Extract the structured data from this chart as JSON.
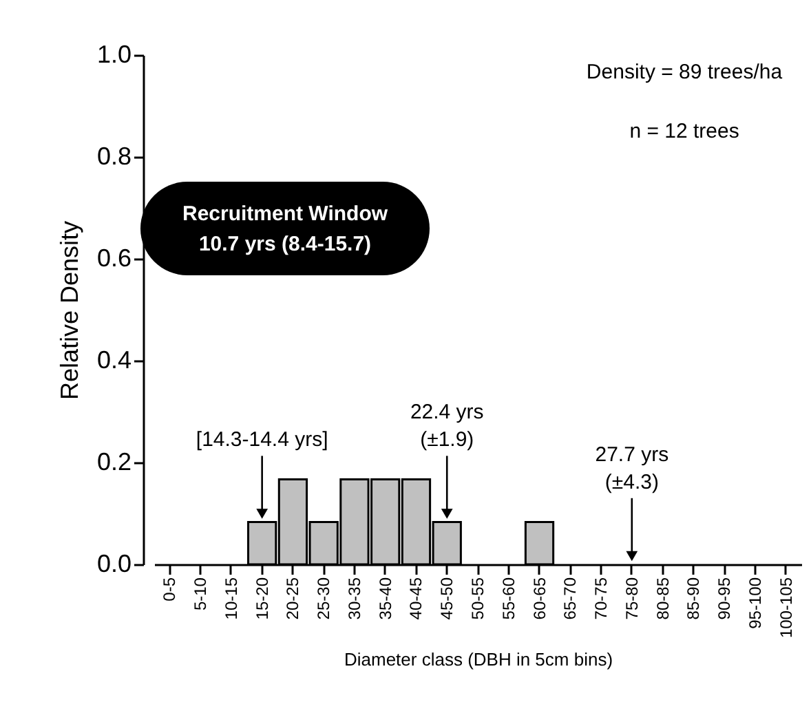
{
  "chart_data": {
    "type": "bar",
    "categories": [
      "0-5",
      "5-10",
      "10-15",
      "15-20",
      "20-25",
      "25-30",
      "30-35",
      "35-40",
      "40-45",
      "45-50",
      "50-55",
      "55-60",
      "60-65",
      "65-70",
      "70-75",
      "75-80",
      "80-85",
      "85-90",
      "90-95",
      "95-100",
      "100-105"
    ],
    "values": [
      0,
      0,
      0,
      0.083,
      0.167,
      0.083,
      0.167,
      0.167,
      0.167,
      0.083,
      0,
      0,
      0.083,
      0,
      0,
      0,
      0,
      0,
      0,
      0,
      0
    ],
    "color": "#c0c0c0",
    "xlabel": "Diameter class (DBH in 5cm bins)",
    "ylabel": "Relative Density",
    "ylim": [
      0,
      1
    ],
    "yticks": [
      {
        "value": 0,
        "label": "0.0"
      },
      {
        "value": 0.2,
        "label": "0.2"
      },
      {
        "value": 0.4,
        "label": "0.4"
      },
      {
        "value": 0.6,
        "label": "0.6"
      },
      {
        "value": 0.8,
        "label": "0.8"
      },
      {
        "value": 1,
        "label": "1.0"
      }
    ],
    "grid": false,
    "annotations": [
      "Density = 89 trees/ha",
      "n = 12 trees",
      "Recruitment Window\n10.7 yrs (8.4-15.7)",
      {
        "text": "[14.3-14.4 yrs]",
        "x": "15-20",
        "y": 0.083
      },
      {
        "text": "22.4 yrs\n(±1.9)",
        "x": "45-50",
        "y": 0.083
      },
      {
        "text": "27.7 yrs\n(±4.3)",
        "x": "75-80",
        "y": 0
      }
    ]
  }
}
